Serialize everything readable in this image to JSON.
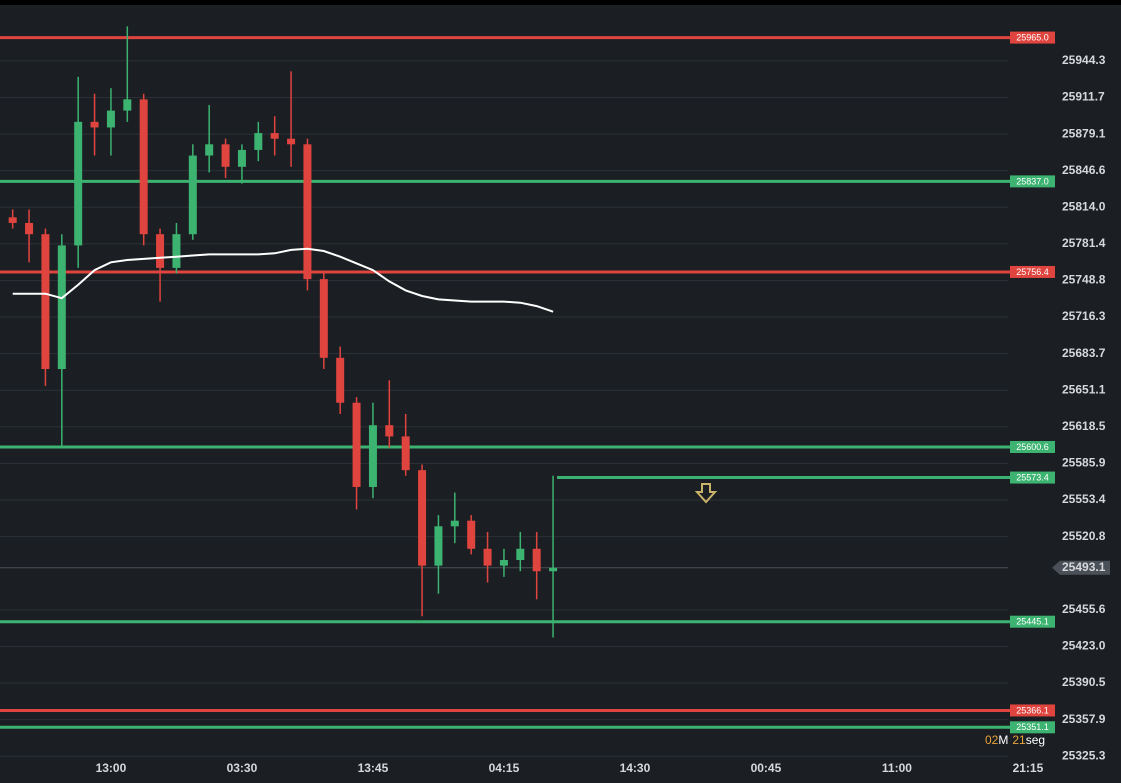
{
  "chart_data": {
    "type": "candlestick",
    "categories": [
      null,
      null,
      null,
      null,
      null,
      null,
      "13:00",
      null,
      null,
      null,
      null,
      null,
      null,
      null,
      "03:30",
      null,
      null,
      null,
      null,
      null,
      null,
      null,
      "13:45",
      null,
      null,
      null,
      null,
      null,
      null,
      null,
      "04:15",
      null,
      null,
      null,
      null,
      null,
      null,
      null,
      "14:30",
      null,
      null,
      null,
      null,
      null,
      null,
      null,
      "00:45",
      null,
      null,
      null,
      null,
      null,
      null,
      null,
      "11:00",
      null,
      null,
      null,
      null,
      null,
      null,
      null,
      "21:15"
    ],
    "candles": {
      "open": [
        25805,
        25800,
        25790,
        25670,
        25780,
        25890,
        25885,
        25900,
        25910,
        25790,
        25760,
        25790,
        25860,
        25870,
        25850,
        25865,
        25880,
        25875,
        25870,
        25750,
        25680,
        25640,
        25565,
        25620,
        25610,
        25580,
        25495,
        25530,
        25535,
        25510,
        25495,
        25500,
        25510,
        25490,
        null,
        null,
        null,
        null,
        null,
        null,
        null,
        null,
        null,
        null,
        null,
        null,
        null,
        null,
        null,
        null,
        null,
        null,
        null,
        null,
        null,
        null,
        null,
        null,
        null,
        null,
        null,
        null,
        null
      ],
      "high": [
        25812,
        25812,
        25795,
        25790,
        25930,
        25915,
        25920,
        25975,
        25915,
        25795,
        25800,
        25870,
        25905,
        25875,
        25870,
        25890,
        25895,
        25935,
        25875,
        25755,
        25690,
        25645,
        25640,
        25660,
        25630,
        25585,
        25540,
        25560,
        25540,
        25525,
        25510,
        25525,
        25525,
        25575,
        null,
        null,
        null,
        null,
        null,
        null,
        null,
        null,
        null,
        null,
        null,
        null,
        null,
        null,
        null,
        null,
        null,
        null,
        null,
        null,
        null,
        null,
        null,
        null,
        null,
        null,
        null,
        null,
        null
      ],
      "low": [
        25795,
        25765,
        25655,
        25600,
        25760,
        25860,
        25860,
        25890,
        25780,
        25730,
        25755,
        25785,
        25845,
        25840,
        25835,
        25855,
        25860,
        25850,
        25740,
        25670,
        25630,
        25545,
        25555,
        25600,
        25575,
        25450,
        25470,
        25515,
        25505,
        25480,
        25485,
        25490,
        25465,
        25431,
        null,
        null,
        null,
        null,
        null,
        null,
        null,
        null,
        null,
        null,
        null,
        null,
        null,
        null,
        null,
        null,
        null,
        null,
        null,
        null,
        null,
        null,
        null,
        null,
        null,
        null,
        null,
        null,
        null
      ],
      "close": [
        25800,
        25790,
        25670,
        25780,
        25890,
        25885,
        25900,
        25910,
        25790,
        25760,
        25790,
        25860,
        25870,
        25850,
        25865,
        25880,
        25875,
        25870,
        25750,
        25680,
        25640,
        25565,
        25620,
        25610,
        25580,
        25495,
        25530,
        25535,
        25510,
        25495,
        25500,
        25510,
        25490,
        25493.1,
        null,
        null,
        null,
        null,
        null,
        null,
        null,
        null,
        null,
        null,
        null,
        null,
        null,
        null,
        null,
        null,
        null,
        null,
        null,
        null,
        null,
        null,
        null,
        null,
        null,
        null,
        null,
        null,
        null
      ]
    },
    "moving_average": {
      "color": "#ffffff",
      "values": [
        25737,
        25737,
        25737,
        25733,
        25745,
        25758,
        25765,
        25767,
        25768,
        25769,
        25770,
        25771,
        25772,
        25772,
        25772,
        25772,
        25773,
        25776,
        25777,
        25775,
        25770,
        25764,
        25758,
        25748,
        25740,
        25735,
        25732,
        25731,
        25730,
        25730,
        25730,
        25729,
        25726,
        25721,
        null,
        null,
        null,
        null,
        null,
        null,
        null,
        null,
        null,
        null,
        null,
        null,
        null,
        null,
        null,
        null,
        null,
        null,
        null,
        null,
        null,
        null,
        null,
        null,
        null,
        null,
        null,
        null,
        null
      ]
    },
    "up_color": "#3cb371",
    "down_color": "#e0443e",
    "ylim": [
      25322,
      25994
    ],
    "yticks": [
      25944.3,
      25911.7,
      25879.1,
      25846.6,
      {
        "value": 25814.0,
        "label": "25814.0"
      },
      25781.4,
      25748.8,
      25716.3,
      25683.7,
      25651.1,
      25618.5,
      25585.9,
      25553.4,
      25520.8,
      25455.6,
      {
        "value": 25423.0,
        "label": "25423.0"
      },
      25390.5,
      25357.9,
      25325.3
    ],
    "grid": true,
    "levels": [
      {
        "value": 25965.0,
        "label": "25965.0",
        "color": "#e0443e"
      },
      {
        "value": 25837.0,
        "label": "25837.0",
        "color": "#3cb371"
      },
      {
        "value": 25756.4,
        "label": "25756.4",
        "color": "#e0443e"
      },
      {
        "value": 25600.6,
        "label": "25600.6",
        "color": "#3cb371"
      },
      {
        "value": 25445.1,
        "label": "25445.1",
        "color": "#3cb371"
      },
      {
        "value": 25366.1,
        "label": "25366.1",
        "color": "#e0443e"
      },
      {
        "value": 25351.1,
        "label": "25351.1",
        "color": "#3cb371"
      }
    ],
    "order": {
      "value": 25573.4,
      "label": "25573.4",
      "color": "#3cb371"
    },
    "last_price": 25493.1,
    "countdown": [
      "02",
      "M",
      "21",
      "seg"
    ]
  }
}
